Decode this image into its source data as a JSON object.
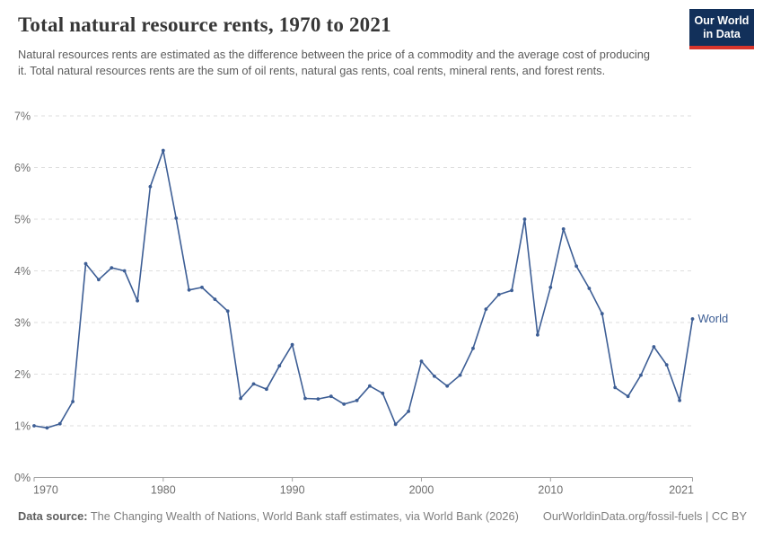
{
  "header": {
    "title": "Total natural resource rents, 1970 to 2021",
    "subtitle": "Natural resources rents are estimated as the difference between the price of a commodity and the average cost of producing it. Total natural resources rents are the sum of oil rents, natural gas rents, coal rents, mineral rents, and forest rents.",
    "logo": {
      "line1": "Our World",
      "line2": "in Data",
      "bg_color": "#12305a",
      "accent_color": "#d8352c"
    }
  },
  "chart_data": {
    "type": "line",
    "title": "Total natural resource rents, 1970 to 2021",
    "xlabel": "",
    "ylabel": "",
    "xlim": [
      1970,
      2021
    ],
    "ylim": [
      0,
      7
    ],
    "grid": "horizontal-dashed",
    "legend_position": "end-of-line",
    "x_ticks": [
      1970,
      1980,
      1990,
      2000,
      2010,
      2021
    ],
    "y_tick_labels": [
      "0%",
      "1%",
      "2%",
      "3%",
      "4%",
      "5%",
      "6%",
      "7%"
    ],
    "series": [
      {
        "name": "World",
        "color": "#3d5e95",
        "x": [
          1970,
          1971,
          1972,
          1973,
          1974,
          1975,
          1976,
          1977,
          1978,
          1979,
          1980,
          1981,
          1982,
          1983,
          1984,
          1985,
          1986,
          1987,
          1988,
          1989,
          1990,
          1991,
          1992,
          1993,
          1994,
          1995,
          1996,
          1997,
          1998,
          1999,
          2000,
          2001,
          2002,
          2003,
          2004,
          2005,
          2006,
          2007,
          2008,
          2009,
          2010,
          2011,
          2012,
          2013,
          2014,
          2015,
          2016,
          2017,
          2018,
          2019,
          2020,
          2021
        ],
        "values": [
          1.0,
          0.96,
          1.04,
          1.47,
          4.14,
          3.83,
          4.06,
          4.0,
          3.42,
          5.63,
          6.33,
          5.02,
          3.63,
          3.68,
          3.45,
          3.22,
          1.53,
          1.81,
          1.71,
          2.16,
          2.57,
          1.53,
          1.52,
          1.57,
          1.42,
          1.49,
          1.77,
          1.63,
          1.03,
          1.28,
          2.25,
          1.96,
          1.77,
          1.98,
          2.5,
          3.26,
          3.54,
          3.62,
          5.0,
          2.76,
          3.68,
          4.81,
          4.09,
          3.66,
          3.17,
          1.74,
          1.57,
          1.98,
          2.53,
          2.18,
          1.49,
          3.07
        ]
      }
    ],
    "colors": {
      "gridline": "#dedede",
      "axis": "#a1a1a1",
      "tick_label": "#6e6e6e"
    }
  },
  "footer": {
    "source_label": "Data source:",
    "source_text": " The Changing Wealth of Nations, World Bank staff estimates, via World Bank (2026)",
    "link_text": "OurWorldinData.org/fossil-fuels | CC BY"
  }
}
